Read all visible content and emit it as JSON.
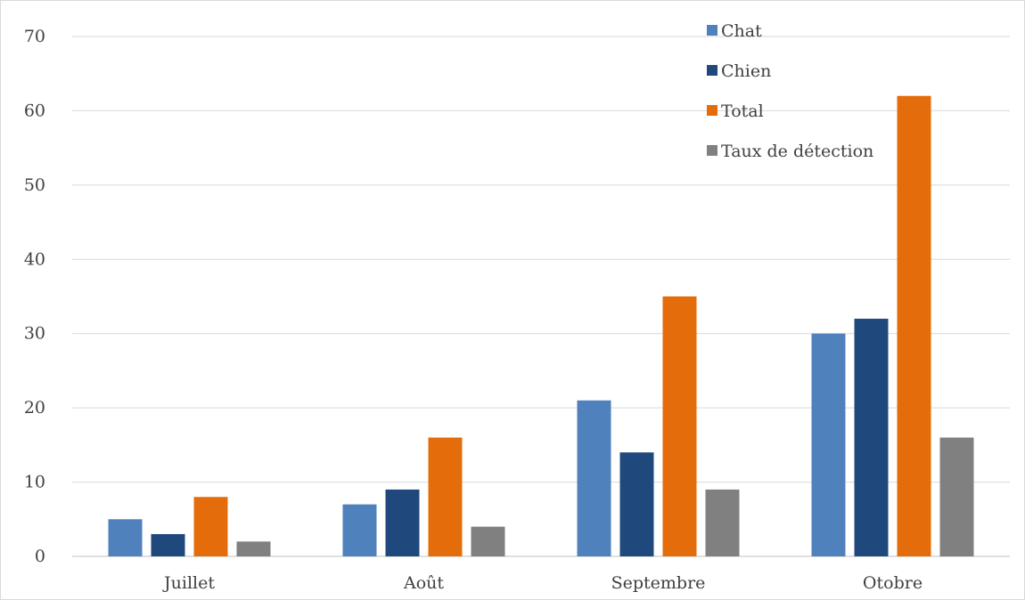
{
  "chart_data": {
    "type": "bar",
    "categories": [
      "Juillet",
      "Août",
      "Septembre",
      "Otobre"
    ],
    "series": [
      {
        "name": "Chat",
        "values": [
          5,
          7,
          21,
          30
        ],
        "color": "#4f81bd"
      },
      {
        "name": "Chien",
        "values": [
          3,
          9,
          14,
          32
        ],
        "color": "#1f497d"
      },
      {
        "name": "Total",
        "values": [
          8,
          16,
          35,
          62
        ],
        "color": "#e46c0a"
      },
      {
        "name": "Taux de détection",
        "values": [
          2,
          4,
          9,
          16
        ],
        "color": "#808080"
      }
    ],
    "ylim": [
      0,
      70
    ],
    "yticks": [
      0,
      10,
      20,
      30,
      40,
      50,
      60,
      70
    ],
    "grid": true,
    "legend_position": "top-right"
  }
}
